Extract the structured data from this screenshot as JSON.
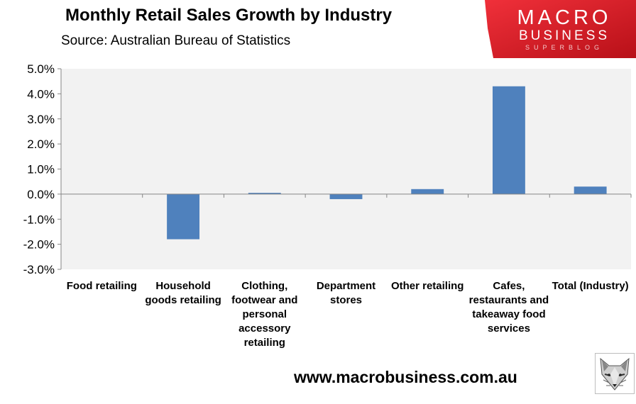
{
  "header": {
    "title": "Monthly Retail Sales Growth by Industry",
    "subtitle": "Source: Australian Bureau of Statistics"
  },
  "logo": {
    "line1": "MACRO",
    "line2": "BUSINESS",
    "line3": "SUPERBLOG",
    "bg_color": "#e0202a",
    "text_color": "#ffffff"
  },
  "footer": {
    "url": "www.macrobusiness.com.au",
    "mascot_icon": "fox-face-icon"
  },
  "chart_data": {
    "type": "bar",
    "title": "Monthly Retail Sales Growth by Industry",
    "categories": [
      "Food retailing",
      "Household goods retailing",
      "Clothing, footwear and personal accessory retailing",
      "Department stores",
      "Other retailing",
      "Cafes, restaurants and takeaway food services",
      "Total (Industry)"
    ],
    "category_label_lines": [
      [
        "Food retailing"
      ],
      [
        "Household",
        "goods retailing"
      ],
      [
        "Clothing,",
        "footwear and",
        "personal",
        "accessory",
        "retailing"
      ],
      [
        "Department",
        "stores"
      ],
      [
        "Other retailing"
      ],
      [
        "Cafes,",
        "restaurants and",
        "takeaway food",
        "services"
      ],
      [
        "Total (Industry)"
      ]
    ],
    "values": [
      0.0,
      -1.8,
      0.05,
      -0.2,
      0.2,
      4.3,
      0.3
    ],
    "ylim": [
      -3.0,
      5.0
    ],
    "yticks": [
      5.0,
      4.0,
      3.0,
      2.0,
      1.0,
      0.0,
      -1.0,
      -2.0,
      -3.0
    ],
    "ytick_labels": [
      "5.0%",
      "4.0%",
      "3.0%",
      "2.0%",
      "1.0%",
      "0.0%",
      "-1.0%",
      "-2.0%",
      "-3.0%"
    ],
    "bar_color": "#4f81bd",
    "plot_background": "#f2f2f2",
    "grid": false,
    "legend": "none"
  }
}
